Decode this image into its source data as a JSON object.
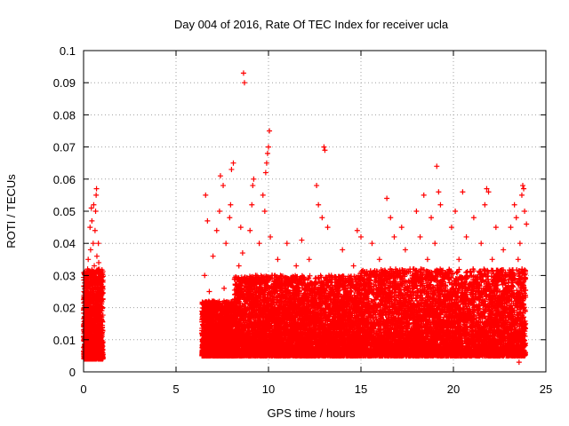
{
  "chart_data": {
    "type": "scatter",
    "title": "Day 004 of 2016, Rate Of TEC Index for receiver ucla",
    "xlabel": "GPS time / hours",
    "ylabel": "ROTI / TECUs",
    "xlim": [
      0,
      25
    ],
    "ylim": [
      0,
      0.1
    ],
    "xticks": [
      "0",
      "5",
      "10",
      "15",
      "20",
      "25"
    ],
    "yticks": [
      "0",
      "0.01",
      "0.02",
      "0.03",
      "0.04",
      "0.05",
      "0.06",
      "0.07",
      "0.08",
      "0.09",
      "0.1"
    ],
    "xtick_values": [
      0,
      5,
      10,
      15,
      20,
      25
    ],
    "ytick_values": [
      0,
      0.01,
      0.02,
      0.03,
      0.04,
      0.05,
      0.06,
      0.07,
      0.08,
      0.09,
      0.1
    ],
    "grid": true,
    "marker": "+",
    "color": "#ff0000",
    "series": [
      {
        "points": [
          [
            0.05,
            0.01
          ],
          [
            0.1,
            0.018
          ],
          [
            0.12,
            0.022
          ],
          [
            0.15,
            0.028
          ],
          [
            0.18,
            0.012
          ],
          [
            0.2,
            0.006
          ],
          [
            0.22,
            0.032
          ],
          [
            0.25,
            0.035
          ],
          [
            0.28,
            0.015
          ],
          [
            0.3,
            0.024
          ],
          [
            0.32,
            0.008
          ],
          [
            0.35,
            0.045
          ],
          [
            0.38,
            0.038
          ],
          [
            0.4,
            0.03
          ],
          [
            0.42,
            0.051
          ],
          [
            0.45,
            0.047
          ],
          [
            0.48,
            0.02
          ],
          [
            0.5,
            0.026
          ],
          [
            0.52,
            0.04
          ],
          [
            0.55,
            0.052
          ],
          [
            0.58,
            0.033
          ],
          [
            0.6,
            0.016
          ],
          [
            0.62,
            0.044
          ],
          [
            0.65,
            0.05
          ],
          [
            0.68,
            0.055
          ],
          [
            0.7,
            0.057
          ],
          [
            0.72,
            0.036
          ],
          [
            0.75,
            0.029
          ],
          [
            0.78,
            0.021
          ],
          [
            0.8,
            0.04
          ],
          [
            0.82,
            0.034
          ],
          [
            0.85,
            0.014
          ],
          [
            0.88,
            0.027
          ],
          [
            0.9,
            0.01
          ],
          [
            0.92,
            0.019
          ],
          [
            0.95,
            0.008
          ],
          [
            0.98,
            0.012
          ],
          [
            0.4,
            0.004
          ],
          [
            0.55,
            0.006
          ],
          [
            0.3,
            0.005
          ],
          [
            6.5,
            0.012
          ],
          [
            6.55,
            0.03
          ],
          [
            6.6,
            0.055
          ],
          [
            6.65,
            0.018
          ],
          [
            6.7,
            0.047
          ],
          [
            6.75,
            0.01
          ],
          [
            6.8,
            0.025
          ],
          [
            6.9,
            0.015
          ],
          [
            7.0,
            0.036
          ],
          [
            7.1,
            0.008
          ],
          [
            7.2,
            0.044
          ],
          [
            7.3,
            0.02
          ],
          [
            7.35,
            0.05
          ],
          [
            7.4,
            0.061
          ],
          [
            7.5,
            0.012
          ],
          [
            7.55,
            0.058
          ],
          [
            7.6,
            0.026
          ],
          [
            7.7,
            0.04
          ],
          [
            7.8,
            0.015
          ],
          [
            7.9,
            0.048
          ],
          [
            7.95,
            0.052
          ],
          [
            8.0,
            0.063
          ],
          [
            8.1,
            0.065
          ],
          [
            8.2,
            0.01
          ],
          [
            8.3,
            0.022
          ],
          [
            8.4,
            0.033
          ],
          [
            8.5,
            0.045
          ],
          [
            8.6,
            0.037
          ],
          [
            8.65,
            0.093
          ],
          [
            8.7,
            0.09
          ],
          [
            8.8,
            0.018
          ],
          [
            8.9,
            0.025
          ],
          [
            9.0,
            0.044
          ],
          [
            9.1,
            0.052
          ],
          [
            9.15,
            0.058
          ],
          [
            9.2,
            0.06
          ],
          [
            9.3,
            0.03
          ],
          [
            9.4,
            0.012
          ],
          [
            9.5,
            0.04
          ],
          [
            9.6,
            0.025
          ],
          [
            9.7,
            0.055
          ],
          [
            9.8,
            0.05
          ],
          [
            9.85,
            0.062
          ],
          [
            9.9,
            0.065
          ],
          [
            9.95,
            0.068
          ],
          [
            10.0,
            0.07
          ],
          [
            10.05,
            0.075
          ],
          [
            10.1,
            0.042
          ],
          [
            10.2,
            0.03
          ],
          [
            10.3,
            0.018
          ],
          [
            10.5,
            0.035
          ],
          [
            10.7,
            0.022
          ],
          [
            10.9,
            0.012
          ],
          [
            11.0,
            0.04
          ],
          [
            11.2,
            0.028
          ],
          [
            11.4,
            0.015
          ],
          [
            11.5,
            0.033
          ],
          [
            11.8,
            0.041
          ],
          [
            12.0,
            0.026
          ],
          [
            12.2,
            0.035
          ],
          [
            12.4,
            0.012
          ],
          [
            12.6,
            0.058
          ],
          [
            12.7,
            0.052
          ],
          [
            12.9,
            0.048
          ],
          [
            13.0,
            0.07
          ],
          [
            13.05,
            0.069
          ],
          [
            13.2,
            0.045
          ],
          [
            13.4,
            0.03
          ],
          [
            13.6,
            0.02
          ],
          [
            13.8,
            0.01
          ],
          [
            14.0,
            0.038
          ],
          [
            14.2,
            0.025
          ],
          [
            14.4,
            0.015
          ],
          [
            14.6,
            0.033
          ],
          [
            14.8,
            0.044
          ],
          [
            15.0,
            0.042
          ],
          [
            15.2,
            0.03
          ],
          [
            15.4,
            0.018
          ],
          [
            15.6,
            0.04
          ],
          [
            15.8,
            0.028
          ],
          [
            16.0,
            0.035
          ],
          [
            16.2,
            0.022
          ],
          [
            16.4,
            0.054
          ],
          [
            16.6,
            0.048
          ],
          [
            16.8,
            0.042
          ],
          [
            17.0,
            0.03
          ],
          [
            17.2,
            0.045
          ],
          [
            17.4,
            0.038
          ],
          [
            17.6,
            0.015
          ],
          [
            17.8,
            0.025
          ],
          [
            18.0,
            0.05
          ],
          [
            18.2,
            0.042
          ],
          [
            18.4,
            0.055
          ],
          [
            18.6,
            0.035
          ],
          [
            18.8,
            0.048
          ],
          [
            19.0,
            0.04
          ],
          [
            19.1,
            0.064
          ],
          [
            19.2,
            0.056
          ],
          [
            19.3,
            0.052
          ],
          [
            19.5,
            0.03
          ],
          [
            19.7,
            0.025
          ],
          [
            19.9,
            0.045
          ],
          [
            20.1,
            0.05
          ],
          [
            20.3,
            0.035
          ],
          [
            20.5,
            0.056
          ],
          [
            20.7,
            0.042
          ],
          [
            20.9,
            0.03
          ],
          [
            21.1,
            0.048
          ],
          [
            21.3,
            0.02
          ],
          [
            21.5,
            0.04
          ],
          [
            21.7,
            0.052
          ],
          [
            21.8,
            0.057
          ],
          [
            21.9,
            0.056
          ],
          [
            22.1,
            0.035
          ],
          [
            22.3,
            0.045
          ],
          [
            22.5,
            0.025
          ],
          [
            22.7,
            0.038
          ],
          [
            22.9,
            0.03
          ],
          [
            23.1,
            0.045
          ],
          [
            23.3,
            0.052
          ],
          [
            23.4,
            0.048
          ],
          [
            23.5,
            0.035
          ],
          [
            23.55,
            0.003
          ],
          [
            23.6,
            0.04
          ],
          [
            23.7,
            0.055
          ],
          [
            23.75,
            0.058
          ],
          [
            23.8,
            0.057
          ],
          [
            23.85,
            0.05
          ],
          [
            23.9,
            0.015
          ],
          [
            23.95,
            0.046
          ]
        ],
        "dense_bands": [
          {
            "x_from": 0.0,
            "x_to": 1.05,
            "y_min": 0.004,
            "y_max": 0.032,
            "points_per_hour": 1200
          },
          {
            "x_from": 6.4,
            "x_to": 8.15,
            "y_min": 0.005,
            "y_max": 0.022,
            "points_per_hour": 1100
          },
          {
            "x_from": 8.15,
            "x_to": 15.0,
            "y_min": 0.005,
            "y_max": 0.03,
            "points_per_hour": 1000
          },
          {
            "x_from": 15.0,
            "x_to": 23.9,
            "y_min": 0.005,
            "y_max": 0.032,
            "points_per_hour": 1000
          }
        ]
      }
    ]
  }
}
